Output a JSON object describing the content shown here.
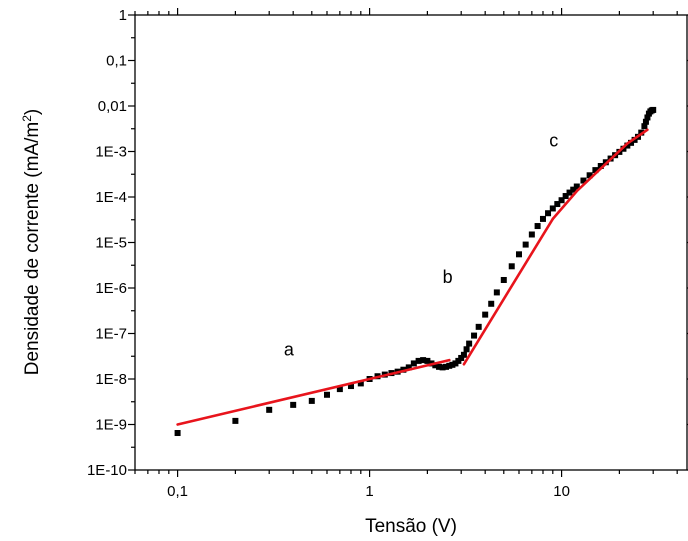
{
  "chart_data": {
    "type": "scatter",
    "xlabel": "Tensão (V)",
    "ylabel": "Densidade de corrente (mA/m",
    "ylabel_sup": "2",
    "ylabel_close": ")",
    "xscale": "log",
    "yscale": "log",
    "xlim": [
      0.06,
      45
    ],
    "ylim": [
      1e-10,
      1
    ],
    "x_ticks": [
      {
        "value": 0.1,
        "label": "0,1"
      },
      {
        "value": 1,
        "label": "1"
      },
      {
        "value": 10,
        "label": "10"
      }
    ],
    "y_ticks": [
      {
        "value": 1e-10,
        "label": "1E-10"
      },
      {
        "value": 1e-09,
        "label": "1E-9"
      },
      {
        "value": 1e-08,
        "label": "1E-8"
      },
      {
        "value": 1e-07,
        "label": "1E-7"
      },
      {
        "value": 1e-06,
        "label": "1E-6"
      },
      {
        "value": 1e-05,
        "label": "1E-5"
      },
      {
        "value": 0.0001,
        "label": "1E-4"
      },
      {
        "value": 0.001,
        "label": "1E-3"
      },
      {
        "value": 0.01,
        "label": "0,01"
      },
      {
        "value": 0.1,
        "label": "0,1"
      },
      {
        "value": 1,
        "label": "1"
      }
    ],
    "grid": false,
    "legend": "none",
    "colors": {
      "points": "#000000",
      "fit": "#e8141c"
    },
    "series": [
      {
        "kind": "points",
        "x": [
          0.1,
          0.2,
          0.3,
          0.4,
          0.5,
          0.6,
          0.7,
          0.8,
          0.9,
          1.0,
          1.1,
          1.2,
          1.3,
          1.4,
          1.5,
          1.6,
          1.7,
          1.8,
          1.9,
          2.0,
          2.1,
          2.2,
          2.3,
          2.4,
          2.5,
          2.6,
          2.7,
          2.8,
          2.9,
          3.0,
          3.1,
          3.2,
          3.3,
          3.5,
          3.7,
          4.0,
          4.3,
          4.6,
          5.0,
          5.5,
          6.0,
          6.5,
          7.0,
          7.5,
          8.0,
          8.5,
          9.0,
          9.5,
          10.0,
          10.5,
          11.0,
          11.5,
          12.0,
          13.0,
          14.0,
          15.0,
          16.0,
          17.0,
          18.0,
          19.0,
          20.0,
          21.0,
          22.0,
          23.0,
          24.0,
          25.0,
          26.0,
          27.0,
          27.5,
          28.0,
          28.5,
          29.0,
          29.5,
          30.0
        ],
        "y": [
          6.5e-10,
          1.2e-09,
          2.1e-09,
          2.7e-09,
          3.3e-09,
          4.5e-09,
          6e-09,
          7e-09,
          8e-09,
          1e-08,
          1.15e-08,
          1.25e-08,
          1.35e-08,
          1.45e-08,
          1.6e-08,
          1.8e-08,
          2.2e-08,
          2.5e-08,
          2.6e-08,
          2.5e-08,
          2.2e-08,
          2e-08,
          1.85e-08,
          1.8e-08,
          1.85e-08,
          1.95e-08,
          2.05e-08,
          2.2e-08,
          2.5e-08,
          2.9e-08,
          3.4e-08,
          4.5e-08,
          6e-08,
          9e-08,
          1.4e-07,
          2.6e-07,
          4.5e-07,
          8e-07,
          1.5e-06,
          3e-06,
          5.5e-06,
          9e-06,
          1.5e-05,
          2.3e-05,
          3.3e-05,
          4.4e-05,
          5.6e-05,
          7e-05,
          8.5e-05,
          0.000105,
          0.000125,
          0.000145,
          0.00017,
          0.00023,
          0.0003,
          0.00039,
          0.00048,
          0.00058,
          0.0007,
          0.00083,
          0.00098,
          0.00115,
          0.00135,
          0.00155,
          0.0018,
          0.0021,
          0.0026,
          0.0036,
          0.0045,
          0.0056,
          0.0068,
          0.0076,
          0.008,
          0.0082
        ]
      },
      {
        "kind": "fit",
        "x": [
          0.1,
          2.6
        ],
        "y": [
          1e-09,
          2.6e-08
        ]
      },
      {
        "kind": "fit",
        "x": [
          3.1,
          9.0
        ],
        "y": [
          2.1e-08,
          3.3e-05
        ]
      },
      {
        "kind": "fit",
        "x": [
          9.0,
          12.0,
          22.0,
          28.0
        ],
        "y": [
          3.3e-05,
          0.000135,
          0.0015,
          0.003
        ]
      }
    ],
    "annotations": [
      {
        "text": "a",
        "x": 0.13,
        "y": 2.6e-08
      },
      {
        "text": "b",
        "x": 1.0,
        "y": 1.0
      },
      {
        "text": "c",
        "x": 1.0,
        "y": 1.0
      }
    ]
  }
}
